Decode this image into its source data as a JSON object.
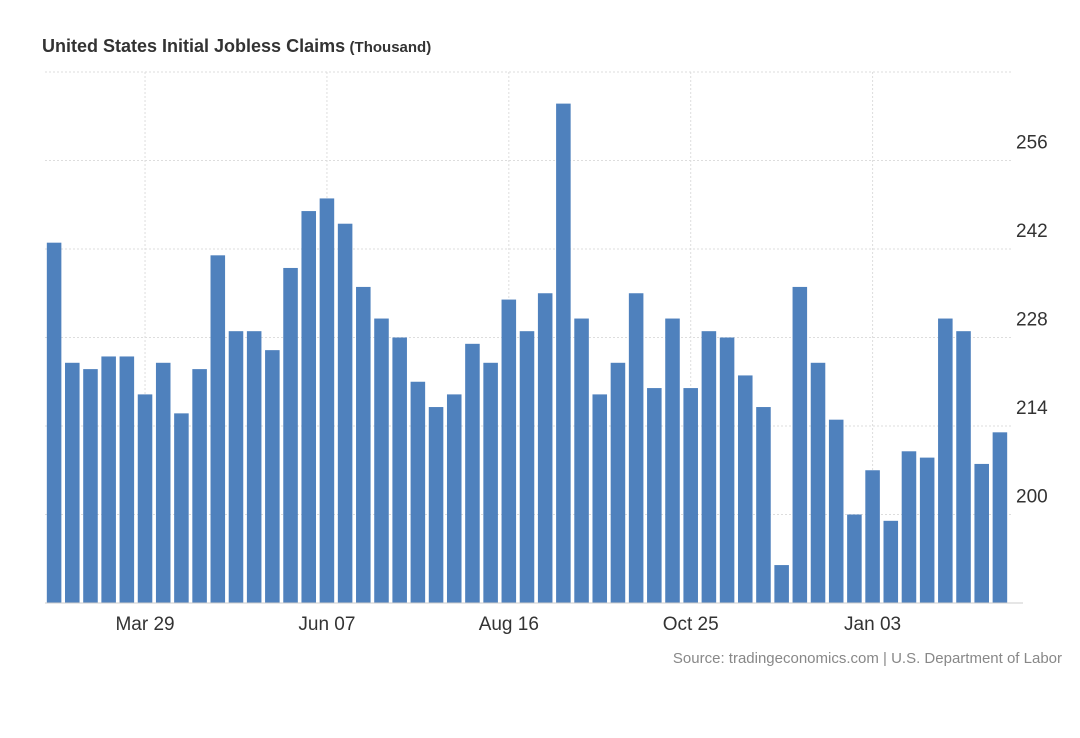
{
  "colors": {
    "bar": "#4f81bd",
    "grid": "#dddddd",
    "axis": "#cccccc",
    "text": "#333333",
    "source": "#888888"
  },
  "chart_data": {
    "type": "bar",
    "title": "United States Initial Jobless Claims",
    "unit": "(Thousand)",
    "xlabel": "",
    "ylabel": "",
    "ylim": [
      186,
      270
    ],
    "yticks": [
      200,
      214,
      228,
      242,
      256
    ],
    "y_axis_position": "right",
    "xtick_labels": [
      {
        "label": "Mar 29",
        "index": 5
      },
      {
        "label": "Jun 07",
        "index": 15
      },
      {
        "label": "Aug 16",
        "index": 25
      },
      {
        "label": "Oct 25",
        "index": 35
      },
      {
        "label": "Jan 03",
        "index": 45
      }
    ],
    "values": [
      243,
      224,
      223,
      225,
      225,
      219,
      224,
      216,
      223,
      241,
      229,
      229,
      226,
      239,
      248,
      250,
      246,
      236,
      231,
      228,
      221,
      217,
      219,
      227,
      224,
      234,
      229,
      235,
      265,
      231,
      219,
      224,
      235,
      220,
      231,
      220,
      229,
      228,
      222,
      217,
      192,
      236,
      224,
      215,
      200,
      207,
      199,
      210,
      209,
      231,
      229,
      208,
      213
    ]
  },
  "source": {
    "text": "Source: tradingeconomics.com | U.S. Department of Labor"
  }
}
